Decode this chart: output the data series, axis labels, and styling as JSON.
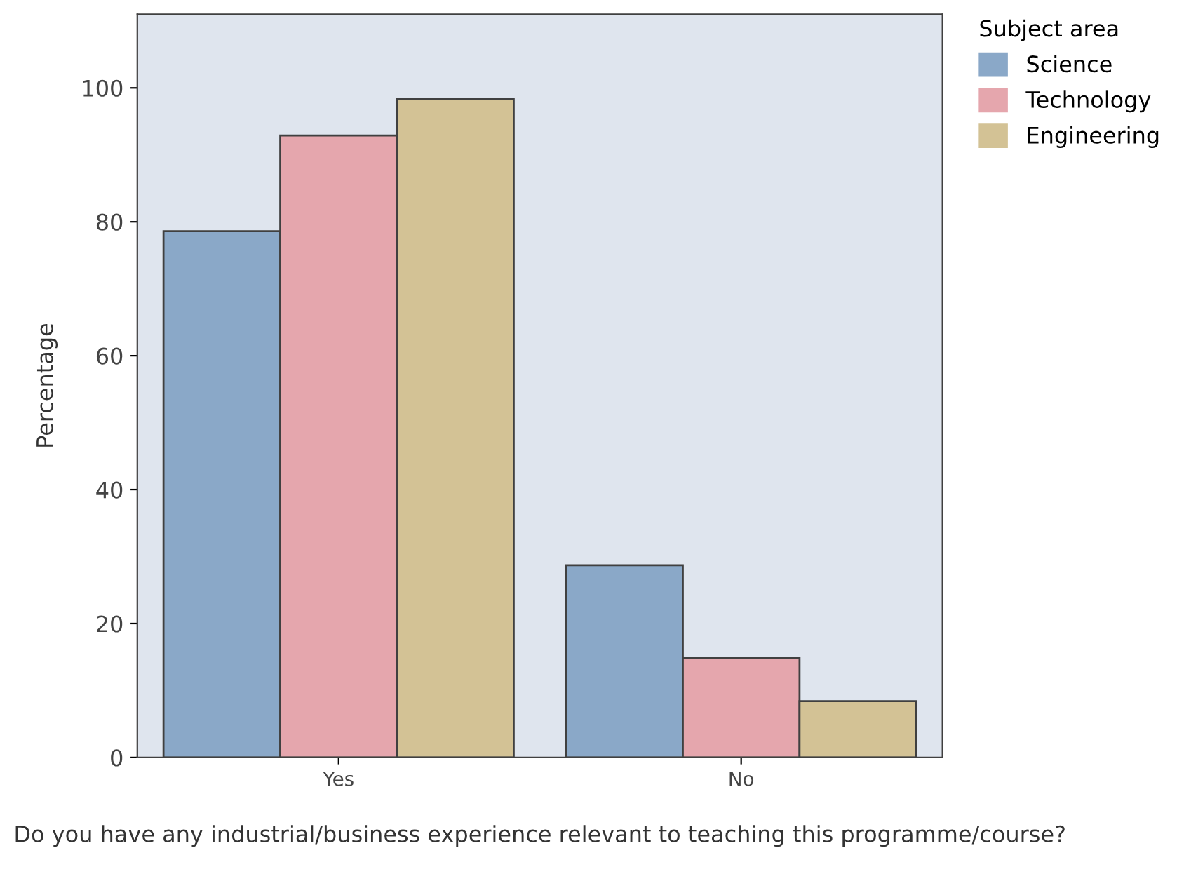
{
  "chart_data": {
    "type": "bar",
    "xlabel": "Do you have any industrial/business experience relevant to teaching this programme/course?",
    "ylabel": "Percentage",
    "legend_title": "Subject area",
    "legend": "top right",
    "grid": false,
    "categories": [
      "Yes",
      "No"
    ],
    "series": [
      {
        "name": "Science",
        "color": "#8aa8c8",
        "values": [
          78.6,
          28.7
        ]
      },
      {
        "name": "Technology",
        "color": "#e5a6ad",
        "values": [
          92.9,
          14.9
        ]
      },
      {
        "name": "Engineering",
        "color": "#d3c295",
        "values": [
          98.3,
          8.4
        ]
      }
    ],
    "ylim": [
      0,
      111
    ],
    "yticks": [
      0,
      20,
      40,
      60,
      80,
      100
    ]
  }
}
